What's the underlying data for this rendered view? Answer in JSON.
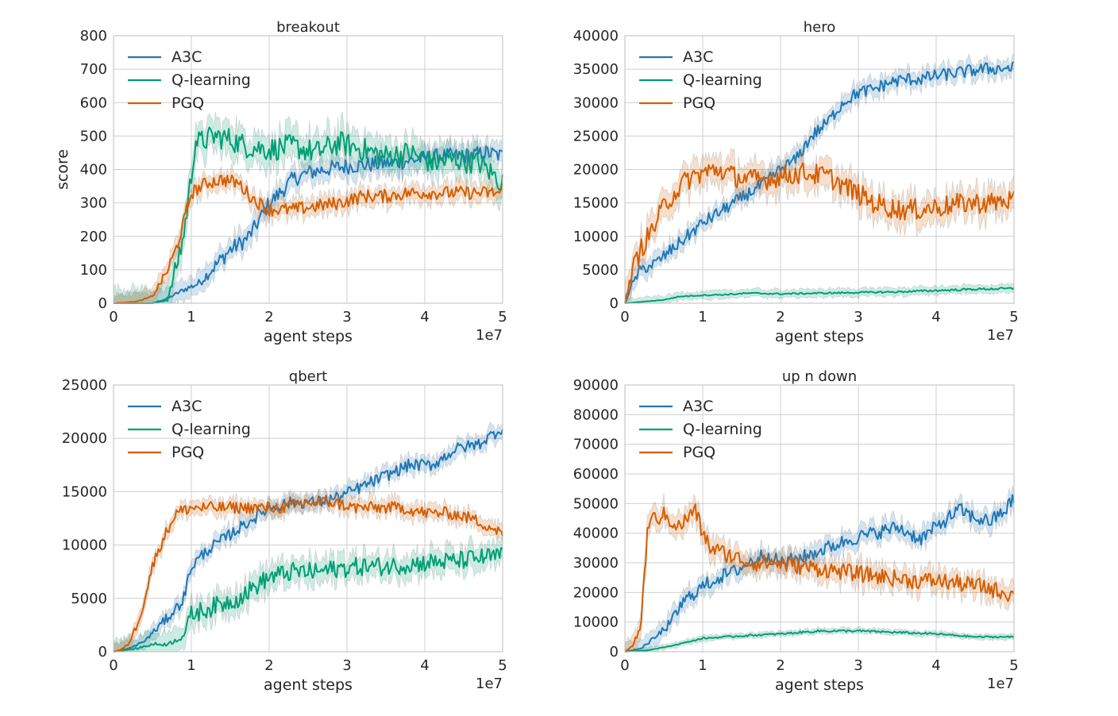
{
  "colors": {
    "A3C": "#1f77b4",
    "Q-learning": "#009e73",
    "PGQ": "#d55e00"
  },
  "chart_data": [
    {
      "type": "line",
      "title": "breakout",
      "xlabel": "agent steps",
      "ylabel": "score",
      "x_multiplier": "1e7",
      "xlim": [
        0,
        5
      ],
      "ylim": [
        0,
        800
      ],
      "xticks": [
        0,
        1,
        2,
        3,
        4,
        5
      ],
      "yticks": [
        0,
        100,
        200,
        300,
        400,
        500,
        600,
        700,
        800
      ],
      "legend": "top-left",
      "grid": true,
      "series": [
        {
          "name": "A3C",
          "x": [
            0,
            0.5,
            0.7,
            0.9,
            1.1,
            1.3,
            1.5,
            1.7,
            1.8,
            1.9,
            2.0,
            2.1,
            2.3,
            2.5,
            2.7,
            3.0,
            3.3,
            3.6,
            3.9,
            4.2,
            4.5,
            4.8,
            5.0
          ],
          "y": [
            0,
            0,
            15,
            40,
            60,
            110,
            160,
            190,
            220,
            260,
            300,
            320,
            370,
            390,
            400,
            410,
            415,
            420,
            430,
            440,
            440,
            450,
            440
          ],
          "band": 30
        },
        {
          "name": "Q-learning",
          "x": [
            0,
            0.5,
            0.7,
            0.9,
            1.0,
            1.05,
            1.1,
            1.3,
            1.5,
            1.7,
            2.0,
            2.3,
            2.6,
            2.9,
            3.2,
            3.5,
            3.8,
            4.1,
            4.4,
            4.7,
            5.0
          ],
          "y": [
            0,
            0,
            10,
            200,
            380,
            490,
            480,
            500,
            490,
            470,
            460,
            470,
            450,
            480,
            460,
            440,
            450,
            420,
            430,
            420,
            360
          ],
          "band": 45
        },
        {
          "name": "PGQ",
          "x": [
            0,
            0.3,
            0.5,
            0.7,
            0.8,
            0.9,
            1.0,
            1.2,
            1.4,
            1.6,
            1.8,
            2.0,
            2.3,
            2.6,
            2.9,
            3.2,
            3.5,
            3.8,
            4.1,
            4.4,
            4.7,
            5.0
          ],
          "y": [
            0,
            5,
            20,
            100,
            160,
            240,
            330,
            360,
            370,
            360,
            310,
            280,
            280,
            290,
            300,
            320,
            320,
            330,
            330,
            330,
            330,
            330
          ],
          "band": 25
        }
      ]
    },
    {
      "type": "line",
      "title": "hero",
      "xlabel": "agent steps",
      "ylabel": "",
      "x_multiplier": "1e7",
      "xlim": [
        0,
        5
      ],
      "ylim": [
        0,
        40000
      ],
      "xticks": [
        0,
        1,
        2,
        3,
        4,
        5
      ],
      "yticks": [
        0,
        5000,
        10000,
        15000,
        20000,
        25000,
        30000,
        35000,
        40000
      ],
      "legend": "top-left",
      "grid": true,
      "series": [
        {
          "name": "A3C",
          "x": [
            0,
            0.1,
            0.2,
            0.4,
            0.6,
            0.8,
            1.0,
            1.2,
            1.4,
            1.6,
            1.8,
            2.0,
            2.2,
            2.4,
            2.6,
            2.8,
            3.0,
            3.2,
            3.4,
            3.6,
            3.8,
            4.0,
            4.3,
            4.6,
            5.0
          ],
          "y": [
            0,
            3000,
            5000,
            6000,
            8000,
            10000,
            12000,
            13500,
            15000,
            16500,
            18000,
            20000,
            21500,
            25000,
            27000,
            30000,
            31500,
            32000,
            33000,
            33500,
            33500,
            34000,
            34500,
            35000,
            35200
          ],
          "band": 1200
        },
        {
          "name": "Q-learning",
          "x": [
            0,
            0.2,
            0.5,
            0.7,
            1.0,
            1.3,
            1.6,
            2.0,
            2.5,
            3.0,
            3.5,
            4.0,
            4.5,
            5.0
          ],
          "y": [
            0,
            200,
            500,
            1000,
            1200,
            1300,
            1500,
            1400,
            1500,
            1600,
            1700,
            1900,
            2100,
            2200
          ],
          "band": 600
        },
        {
          "name": "PGQ",
          "x": [
            0,
            0.1,
            0.2,
            0.3,
            0.4,
            0.5,
            0.6,
            0.8,
            1.0,
            1.2,
            1.4,
            1.6,
            1.8,
            2.0,
            2.3,
            2.6,
            2.9,
            3.2,
            3.5,
            3.8,
            4.1,
            4.4,
            4.7,
            5.0
          ],
          "y": [
            0,
            5000,
            8000,
            10000,
            12000,
            14500,
            16000,
            18500,
            19500,
            20000,
            19000,
            18500,
            18500,
            19000,
            19500,
            19000,
            17000,
            15000,
            14000,
            14000,
            14500,
            15000,
            15000,
            15500
          ],
          "band": 2000
        }
      ]
    },
    {
      "type": "line",
      "title": "qbert",
      "xlabel": "agent steps",
      "ylabel": "",
      "x_multiplier": "1e7",
      "xlim": [
        0,
        5
      ],
      "ylim": [
        0,
        25000
      ],
      "xticks": [
        0,
        1,
        2,
        3,
        4,
        5
      ],
      "yticks": [
        0,
        5000,
        10000,
        15000,
        20000,
        25000
      ],
      "legend": "top-left",
      "grid": true,
      "series": [
        {
          "name": "A3C",
          "x": [
            0,
            0.2,
            0.4,
            0.6,
            0.8,
            0.9,
            1.0,
            1.2,
            1.4,
            1.6,
            1.8,
            2.0,
            2.3,
            2.6,
            2.9,
            3.2,
            3.5,
            3.8,
            4.1,
            4.4,
            4.7,
            5.0
          ],
          "y": [
            0,
            300,
            1000,
            2500,
            4000,
            5000,
            8000,
            9500,
            10500,
            11500,
            12500,
            13500,
            14000,
            14000,
            14500,
            15500,
            16500,
            17500,
            17500,
            19000,
            19500,
            21000
          ],
          "band": 700
        },
        {
          "name": "Q-learning",
          "x": [
            0,
            0.3,
            0.5,
            0.7,
            0.9,
            1.0,
            1.2,
            1.4,
            1.6,
            1.8,
            2.0,
            2.3,
            2.6,
            2.9,
            3.2,
            3.5,
            3.8,
            4.1,
            4.4,
            4.7,
            5.0
          ],
          "y": [
            0,
            300,
            700,
            700,
            1500,
            3500,
            4000,
            4500,
            5000,
            6000,
            7000,
            7500,
            7500,
            7800,
            8000,
            8000,
            8200,
            8400,
            8500,
            8800,
            9000
          ],
          "band": 1100
        },
        {
          "name": "PGQ",
          "x": [
            0,
            0.1,
            0.2,
            0.3,
            0.4,
            0.5,
            0.6,
            0.7,
            0.8,
            1.0,
            1.3,
            1.6,
            1.9,
            2.2,
            2.5,
            2.8,
            3.1,
            3.4,
            3.7,
            4.0,
            4.3,
            4.6,
            4.9,
            5.0
          ],
          "y": [
            0,
            200,
            800,
            2500,
            5000,
            8000,
            10000,
            11500,
            13000,
            13500,
            13500,
            13500,
            13500,
            13500,
            14000,
            14000,
            13500,
            13500,
            13500,
            13000,
            13000,
            12500,
            11500,
            11000
          ],
          "band": 700
        }
      ]
    },
    {
      "type": "line",
      "title": "up n down",
      "xlabel": "agent steps",
      "ylabel": "",
      "x_multiplier": "1e7",
      "xlim": [
        0,
        5
      ],
      "ylim": [
        0,
        90000
      ],
      "xticks": [
        0,
        1,
        2,
        3,
        4,
        5
      ],
      "yticks": [
        0,
        10000,
        20000,
        30000,
        40000,
        50000,
        60000,
        70000,
        80000,
        90000
      ],
      "legend": "top-left",
      "grid": true,
      "series": [
        {
          "name": "A3C",
          "x": [
            0,
            0.2,
            0.4,
            0.6,
            0.7,
            0.8,
            1.0,
            1.2,
            1.4,
            1.6,
            1.8,
            2.0,
            2.3,
            2.6,
            2.9,
            3.2,
            3.5,
            3.8,
            4.1,
            4.3,
            4.5,
            4.7,
            4.9,
            5.0
          ],
          "y": [
            0,
            1000,
            5000,
            10000,
            15000,
            18000,
            22000,
            25000,
            27000,
            30000,
            33000,
            30000,
            32000,
            35000,
            38000,
            40000,
            42000,
            38000,
            44000,
            48000,
            45000,
            44000,
            48000,
            52000
          ],
          "band": 3000
        },
        {
          "name": "Q-learning",
          "x": [
            0,
            0.3,
            0.6,
            1.0,
            1.3,
            1.6,
            2.0,
            2.5,
            3.0,
            3.5,
            4.0,
            4.5,
            5.0
          ],
          "y": [
            0,
            500,
            2000,
            4500,
            5000,
            5500,
            6000,
            7000,
            7000,
            6500,
            6000,
            5000,
            5000
          ],
          "band": 900
        },
        {
          "name": "PGQ",
          "x": [
            0,
            0.1,
            0.2,
            0.25,
            0.3,
            0.5,
            0.7,
            0.9,
            1.0,
            1.1,
            1.3,
            1.6,
            1.9,
            2.2,
            2.5,
            2.8,
            3.1,
            3.4,
            3.7,
            4.0,
            4.3,
            4.6,
            5.0
          ],
          "y": [
            0,
            2000,
            8000,
            25000,
            44000,
            46000,
            42000,
            48000,
            40000,
            35000,
            33000,
            30000,
            30000,
            29000,
            28000,
            27000,
            26000,
            25000,
            24000,
            24000,
            23000,
            22000,
            19000
          ],
          "band": 3500
        }
      ]
    }
  ]
}
